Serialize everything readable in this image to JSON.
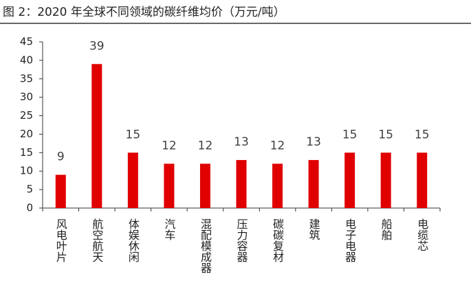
{
  "chart_data": {
    "type": "bar",
    "title": "图 2：2020 年全球不同领域的碳纤维均价（万元/吨）",
    "categories": [
      "风电叶片",
      "航空航天",
      "体娱休闲",
      "汽车",
      "混配模成器",
      "压力容器",
      "碳碳复材",
      "建筑",
      "电子电器",
      "船舶",
      "电缆芯"
    ],
    "values": [
      9,
      39,
      15,
      12,
      12,
      13,
      12,
      13,
      15,
      15,
      15
    ],
    "color": "#e00000",
    "ylim": [
      0,
      45
    ],
    "yticks": [
      0,
      5,
      10,
      15,
      20,
      25,
      30,
      35,
      40,
      45
    ],
    "grid": false
  }
}
